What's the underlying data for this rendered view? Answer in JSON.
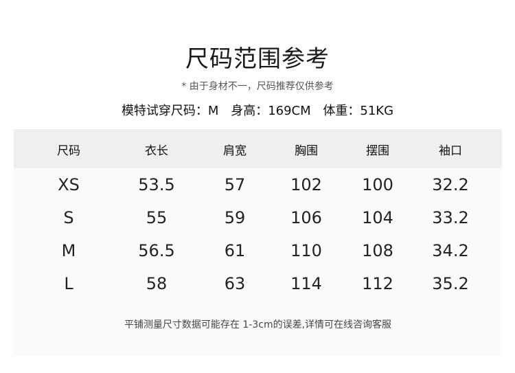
{
  "title": "尺码范围参考",
  "note": "* 由于身材不一，尺码推荐仅供参考",
  "model": {
    "size": "模特试穿尺码：M",
    "height": "身高：169CM",
    "weight": "体重：51KG"
  },
  "table": {
    "headers": [
      "尺码",
      "衣长",
      "肩宽",
      "胸围",
      "摆围",
      "袖口"
    ],
    "rows": [
      [
        "XS",
        "53.5",
        "57",
        "102",
        "100",
        "32.2"
      ],
      [
        "S",
        "55",
        "59",
        "106",
        "104",
        "33.2"
      ],
      [
        "M",
        "56.5",
        "61",
        "110",
        "108",
        "34.2"
      ],
      [
        "L",
        "58",
        "63",
        "114",
        "112",
        "35.2"
      ]
    ]
  },
  "footer": "平铺测量尺寸数据可能存在 1-3cm的误差,详情可在线咨询客服"
}
